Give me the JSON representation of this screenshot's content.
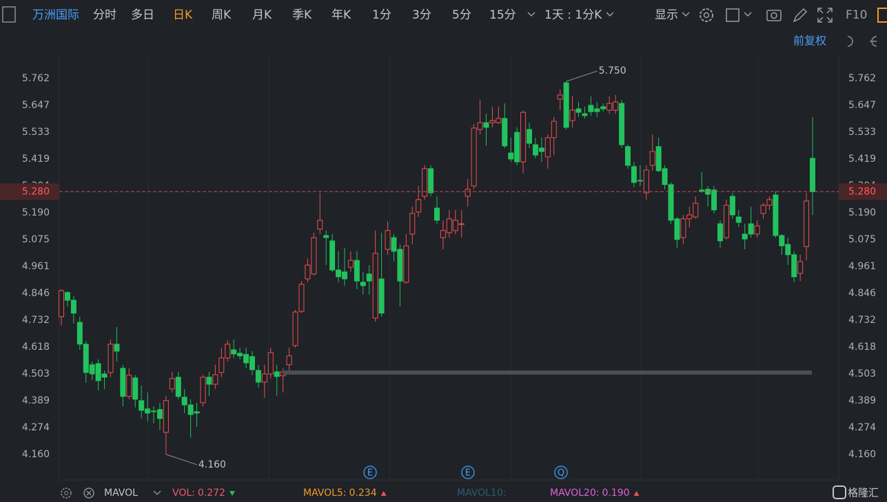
{
  "toolbar": {
    "symbol": "万洲国际",
    "tabs": [
      "分时",
      "多日",
      "日K",
      "周K",
      "月K",
      "季K",
      "年K",
      "1分",
      "3分",
      "5分",
      "15分"
    ],
    "active_tab": 2,
    "interval": "1天 : 1分K",
    "display": "显示",
    "f10": "F10"
  },
  "adjust": "前复权",
  "chart_data": {
    "type": "candlestick",
    "open": [
      4.747,
      4.85,
      4.817,
      4.723,
      4.63,
      4.542,
      4.547,
      4.503,
      4.509,
      4.63,
      4.527,
      4.407,
      4.486,
      4.389,
      4.354,
      4.345,
      4.351,
      4.254,
      4.439,
      4.489,
      4.404,
      4.371,
      4.342,
      4.38,
      4.489,
      4.459,
      4.509,
      4.571,
      4.606,
      4.591,
      4.586,
      4.577,
      4.518,
      4.468,
      4.503,
      4.512,
      4.495,
      4.542,
      4.624,
      4.77,
      4.908,
      4.929,
      5.12,
      5.093,
      5.07,
      4.946,
      4.938,
      4.958,
      4.987,
      4.894,
      4.929,
      4.741,
      4.908,
      5.034,
      5.084,
      5.034,
      4.894,
      5.099,
      5.193,
      5.26,
      5.378,
      5.21,
      5.084,
      5.105,
      5.114,
      5.14,
      5.26,
      5.304,
      5.545,
      5.574,
      5.574,
      5.574,
      5.592,
      5.445,
      5.533,
      5.407,
      5.545,
      5.48,
      5.466,
      5.428,
      5.51,
      5.674,
      5.744,
      5.583,
      5.633,
      5.612,
      5.648,
      5.633,
      5.642,
      5.627,
      5.627,
      5.656,
      5.472,
      5.387,
      5.328,
      5.275,
      5.392,
      5.472,
      5.378,
      5.31,
      5.164,
      5.084,
      5.164,
      5.172,
      5.287,
      5.29,
      5.287,
      5.143,
      5.084,
      5.26,
      5.172,
      5.099,
      5.143,
      5.099,
      5.187,
      5.222,
      5.266,
      5.093,
      5.055,
      5.011,
      4.932,
      5.046,
      5.422
    ],
    "high": [
      4.864,
      4.855,
      4.835,
      4.747,
      4.644,
      4.556,
      4.565,
      4.518,
      4.65,
      4.703,
      4.542,
      4.527,
      4.498,
      4.454,
      4.424,
      4.365,
      4.38,
      4.41,
      4.512,
      4.512,
      4.439,
      4.395,
      4.38,
      4.498,
      4.512,
      4.542,
      4.615,
      4.647,
      4.65,
      4.615,
      4.615,
      4.6,
      4.542,
      4.542,
      4.615,
      4.542,
      4.527,
      4.615,
      4.776,
      4.899,
      4.996,
      5.105,
      5.275,
      5.114,
      5.099,
      5.026,
      5.04,
      5.026,
      5.026,
      4.938,
      4.967,
      5.114,
      5.105,
      5.152,
      5.099,
      5.055,
      5.099,
      5.216,
      5.304,
      5.392,
      5.392,
      5.26,
      5.158,
      5.202,
      5.202,
      5.202,
      5.334,
      5.568,
      5.671,
      5.612,
      5.642,
      5.642,
      5.656,
      5.51,
      5.554,
      5.627,
      5.574,
      5.51,
      5.51,
      5.524,
      5.598,
      5.715,
      5.75,
      5.686,
      5.662,
      5.642,
      5.686,
      5.662,
      5.656,
      5.686,
      5.692,
      5.671,
      5.48,
      5.407,
      5.392,
      5.392,
      5.524,
      5.51,
      5.392,
      5.319,
      5.172,
      5.181,
      5.216,
      5.26,
      5.363,
      5.304,
      5.304,
      5.158,
      5.246,
      5.275,
      5.202,
      5.143,
      5.216,
      5.158,
      5.231,
      5.26,
      5.281,
      5.099,
      5.084,
      5.026,
      5.011,
      5.275,
      5.598
    ],
    "low": [
      4.709,
      4.791,
      4.718,
      4.606,
      4.465,
      4.477,
      4.433,
      4.439,
      4.489,
      4.556,
      4.365,
      4.395,
      4.36,
      4.313,
      4.301,
      4.292,
      4.263,
      4.16,
      4.424,
      4.395,
      4.336,
      4.231,
      4.277,
      4.365,
      4.41,
      4.439,
      4.489,
      4.556,
      4.571,
      4.565,
      4.527,
      4.498,
      4.445,
      4.401,
      4.483,
      4.41,
      4.424,
      4.512,
      4.615,
      4.762,
      4.894,
      4.923,
      5.099,
      4.967,
      4.938,
      4.894,
      4.879,
      4.938,
      4.864,
      4.841,
      4.841,
      4.726,
      4.747,
      5.011,
      4.982,
      4.791,
      4.888,
      5.055,
      5.172,
      5.246,
      5.26,
      5.143,
      5.034,
      5.084,
      5.099,
      5.084,
      5.216,
      5.29,
      5.524,
      5.475,
      5.554,
      5.568,
      5.466,
      5.407,
      5.392,
      5.357,
      5.466,
      5.422,
      5.407,
      5.378,
      5.436,
      5.627,
      5.545,
      5.554,
      5.598,
      5.592,
      5.604,
      5.598,
      5.621,
      5.612,
      5.612,
      5.466,
      5.378,
      5.299,
      5.304,
      5.246,
      5.369,
      5.363,
      5.29,
      5.143,
      5.04,
      5.055,
      5.128,
      5.164,
      5.275,
      5.216,
      5.187,
      5.04,
      5.076,
      5.164,
      5.128,
      5.034,
      5.084,
      5.084,
      5.164,
      5.202,
      5.084,
      5.011,
      4.967,
      4.894,
      4.899,
      4.987,
      5.181
    ],
    "close": [
      4.858,
      4.817,
      4.762,
      4.63,
      4.509,
      4.503,
      4.474,
      4.489,
      4.63,
      4.6,
      4.407,
      4.498,
      4.395,
      4.348,
      4.336,
      4.342,
      4.313,
      4.389,
      4.483,
      4.407,
      4.371,
      4.33,
      4.336,
      4.489,
      4.459,
      4.5,
      4.571,
      4.63,
      4.588,
      4.58,
      4.55,
      4.521,
      4.468,
      4.503,
      4.594,
      4.492,
      4.512,
      4.58,
      4.767,
      4.885,
      4.967,
      5.084,
      5.158,
      5.084,
      4.946,
      4.917,
      4.908,
      4.987,
      4.899,
      4.879,
      4.899,
      5.017,
      4.762,
      5.114,
      5.026,
      4.899,
      5.049,
      5.187,
      5.246,
      5.378,
      5.275,
      5.158,
      5.114,
      5.164,
      5.158,
      5.143,
      5.29,
      5.551,
      5.574,
      5.554,
      5.583,
      5.592,
      5.475,
      5.419,
      5.407,
      5.618,
      5.486,
      5.436,
      5.451,
      5.51,
      5.58,
      5.692,
      5.554,
      5.627,
      5.618,
      5.604,
      5.621,
      5.621,
      5.633,
      5.656,
      5.662,
      5.48,
      5.392,
      5.319,
      5.325,
      5.372,
      5.451,
      5.369,
      5.31,
      5.158,
      5.076,
      5.164,
      5.181,
      5.231,
      5.281,
      5.269,
      5.202,
      5.07,
      5.222,
      5.181,
      5.149,
      5.078,
      5.099,
      5.134,
      5.222,
      5.246,
      5.093,
      5.049,
      5.011,
      4.917,
      4.982,
      5.24,
      5.28
    ],
    "up_color": "#f0514f",
    "down_color": "#22c35e",
    "ylim": [
      4.051,
      5.862
    ],
    "yticks": [
      5.762,
      5.647,
      5.533,
      5.419,
      5.304,
      {
        "value": 5.19,
        "label": "5.190"
      },
      5.075,
      4.961,
      4.846,
      4.732,
      4.618,
      4.503,
      4.389,
      4.274,
      {
        "value": 4.16,
        "label": "4.160"
      }
    ],
    "last_price": {
      "value": 5.28,
      "label": "5.280"
    },
    "annotations": [
      {
        "value": 5.75,
        "label": "5.750"
      },
      {
        "value": 4.16,
        "label": "4.160"
      }
    ]
  },
  "events": [
    "E",
    "E",
    "Q"
  ],
  "indicator": {
    "name": "MAVOL",
    "items": [
      {
        "label": "VOL:",
        "value": "0.272",
        "color": "#f0596a",
        "trend": "down"
      },
      {
        "label": "MAVOL5:",
        "value": "0.234",
        "color": "#f39a2b",
        "trend": "up"
      },
      {
        "label": "MAVOL10:",
        "color": "#2c5d70"
      },
      {
        "label": "MAVOL20:",
        "value": "0.190",
        "color": "#e060d8",
        "trend": "up"
      }
    ]
  },
  "brand": "格隆汇"
}
